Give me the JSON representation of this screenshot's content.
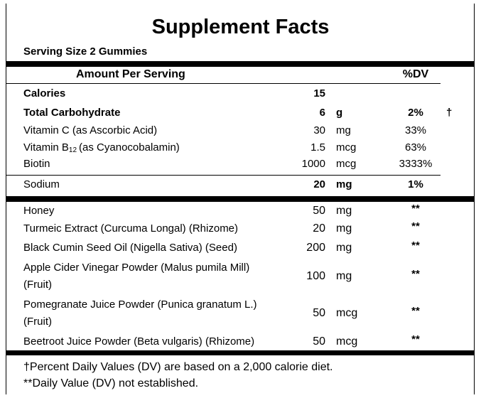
{
  "title": "Supplement Facts",
  "serving_size": "Serving Size 2 Gummies",
  "header": {
    "amount": "Amount Per Serving",
    "dv": "%DV"
  },
  "nutrients": [
    {
      "name": "Calories",
      "amount": "15"
    },
    {
      "name": "Total Carbohydrate",
      "amount": "6",
      "unit": "g",
      "dv": "2%",
      "mark": "†"
    },
    {
      "name": "Vitamin C (as Ascorbic Acid)",
      "amount": "30",
      "unit": "mg",
      "dv": "33%"
    },
    {
      "name": "Vitamin B",
      "name_sub": "12",
      "name_rest": "(as Cyanocobalamin)",
      "amount": "1.5",
      "unit": "mcg",
      "dv": "63%"
    },
    {
      "name": "Biotin",
      "amount": "1000",
      "unit": "mcg",
      "dv": "3333%"
    },
    {
      "name": "Sodium",
      "amount": "20",
      "unit": "mg",
      "dv": "1%"
    }
  ],
  "ingredients": [
    {
      "name": "Honey",
      "amount": "50",
      "unit": "mg",
      "dv": "**"
    },
    {
      "name": "Turmeic Extract (Curcuma Longal) (Rhizome)",
      "amount": "20",
      "unit": "mg",
      "dv": "**"
    },
    {
      "name": "Black Cumin Seed Oil (Nigella Sativa) (Seed)",
      "amount": "200",
      "unit": "mg",
      "dv": "**"
    },
    {
      "name": "Apple Cider Vinegar Powder (Malus pumila Mill)",
      "name_line2": "(Fruit)",
      "amount": "100",
      "unit": "mg",
      "dv": "**"
    },
    {
      "name": "Pomegranate Juice Powder (Punica granatum L.)",
      "name_line2": "(Fruit)",
      "amount": "50",
      "unit": "mcg",
      "dv": "**"
    },
    {
      "name": "Beetroot Juice Powder (Beta vulgaris) (Rhizome)",
      "amount": "50",
      "unit": "mcg",
      "dv": "**"
    }
  ],
  "footnotes": [
    "†Percent Daily Values (DV) are based on a 2,000 calorie diet.",
    "**Daily Value (DV) not established."
  ]
}
